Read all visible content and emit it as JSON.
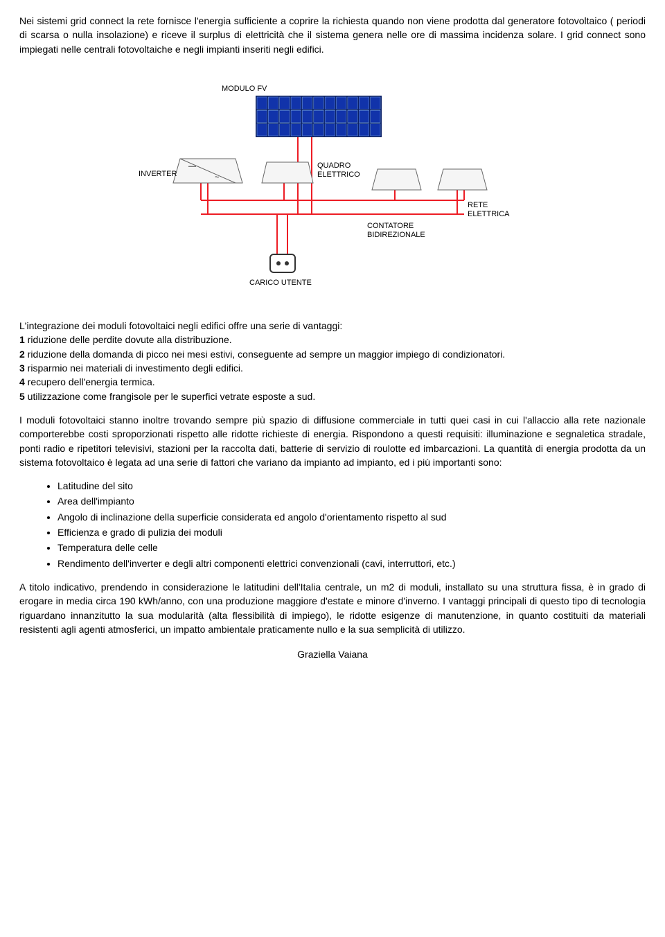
{
  "para1": "Nei sistemi grid connect la rete fornisce l'energia sufficiente a coprire la richiesta quando non viene prodotta dal generatore fotovoltaico ( periodi di scarsa o nulla insolazione) e riceve il surplus di elettricità che il sistema genera nelle ore di massima incidenza solare. I grid connect sono impiegati nelle centrali fotovoltaiche e negli impianti inseriti negli edifici.",
  "diagram_labels": {
    "modulo_fv": "MODULO FV",
    "inverter": "INVERTER",
    "quadro_elettrico": "QUADRO ELETTRICO",
    "rete_elettrica": "RETE ELETTRICA",
    "contatore": "CONTATORE BIDIREZIONALE",
    "carico_utente": "CARICO UTENTE"
  },
  "diagram_colors": {
    "wire": "#ed1c24",
    "panel_border": "#0a1f66",
    "panel_cell": "#0a2d8a",
    "panel_cell_fill": "#1133aa",
    "box_stroke": "#666666",
    "box_fill": "#f5f5f5"
  },
  "section_vantaggi_intro": "L'integrazione dei moduli fotovoltaici negli edifici offre una serie di vantaggi:",
  "vantaggi": [
    {
      "n": "1",
      "text": " riduzione delle perdite dovute alla distribuzione."
    },
    {
      "n": "2",
      "text": " riduzione della domanda di picco nei mesi estivi, conseguente ad sempre un maggior impiego di condizionatori."
    },
    {
      "n": "3",
      "text": " risparmio nei materiali di investimento degli edifici."
    },
    {
      "n": "4",
      "text": " recupero dell'energia termica."
    },
    {
      "n": "5",
      "text": " utilizzazione come frangisole per le superfici vetrate esposte a sud."
    }
  ],
  "para2": "I moduli fotovoltaici stanno inoltre trovando sempre più spazio di diffusione commerciale in tutti quei casi in cui l'allaccio alla rete nazionale comporterebbe costi sproporzionati rispetto alle ridotte richieste di energia. Rispondono a questi requisiti: illuminazione e segnaletica stradale, ponti radio e ripetitori televisivi, stazioni per la raccolta dati, batterie di servizio di roulotte ed imbarcazioni. La quantità di energia prodotta da un sistema fotovoltaico è legata ad una serie di fattori che variano da impianto ad impianto, ed i più importanti sono:",
  "bullets": [
    "Latitudine del sito",
    "Area dell'impianto",
    "Angolo di inclinazione della superficie considerata ed angolo d'orientamento rispetto al sud",
    "Efficienza e grado di pulizia dei moduli",
    "Temperatura delle celle",
    "Rendimento dell'inverter e degli altri componenti elettrici convenzionali (cavi, interruttori, etc.)"
  ],
  "para3": "A titolo indicativo, prendendo in considerazione le latitudini dell'Italia centrale, un m2 di moduli, installato su una struttura fissa, è in grado di erogare in media circa 190 kWh/anno, con una produzione maggiore d'estate e minore d'inverno. I vantaggi principali di questo tipo di tecnologia riguardano innanzitutto la sua modularità (alta flessibilità di impiego), le ridotte esigenze di manutenzione, in quanto costituiti da materiali resistenti agli agenti atmosferici, un impatto ambientale praticamente nullo e la sua semplicità di utilizzo.",
  "signature": "Graziella Vaiana"
}
